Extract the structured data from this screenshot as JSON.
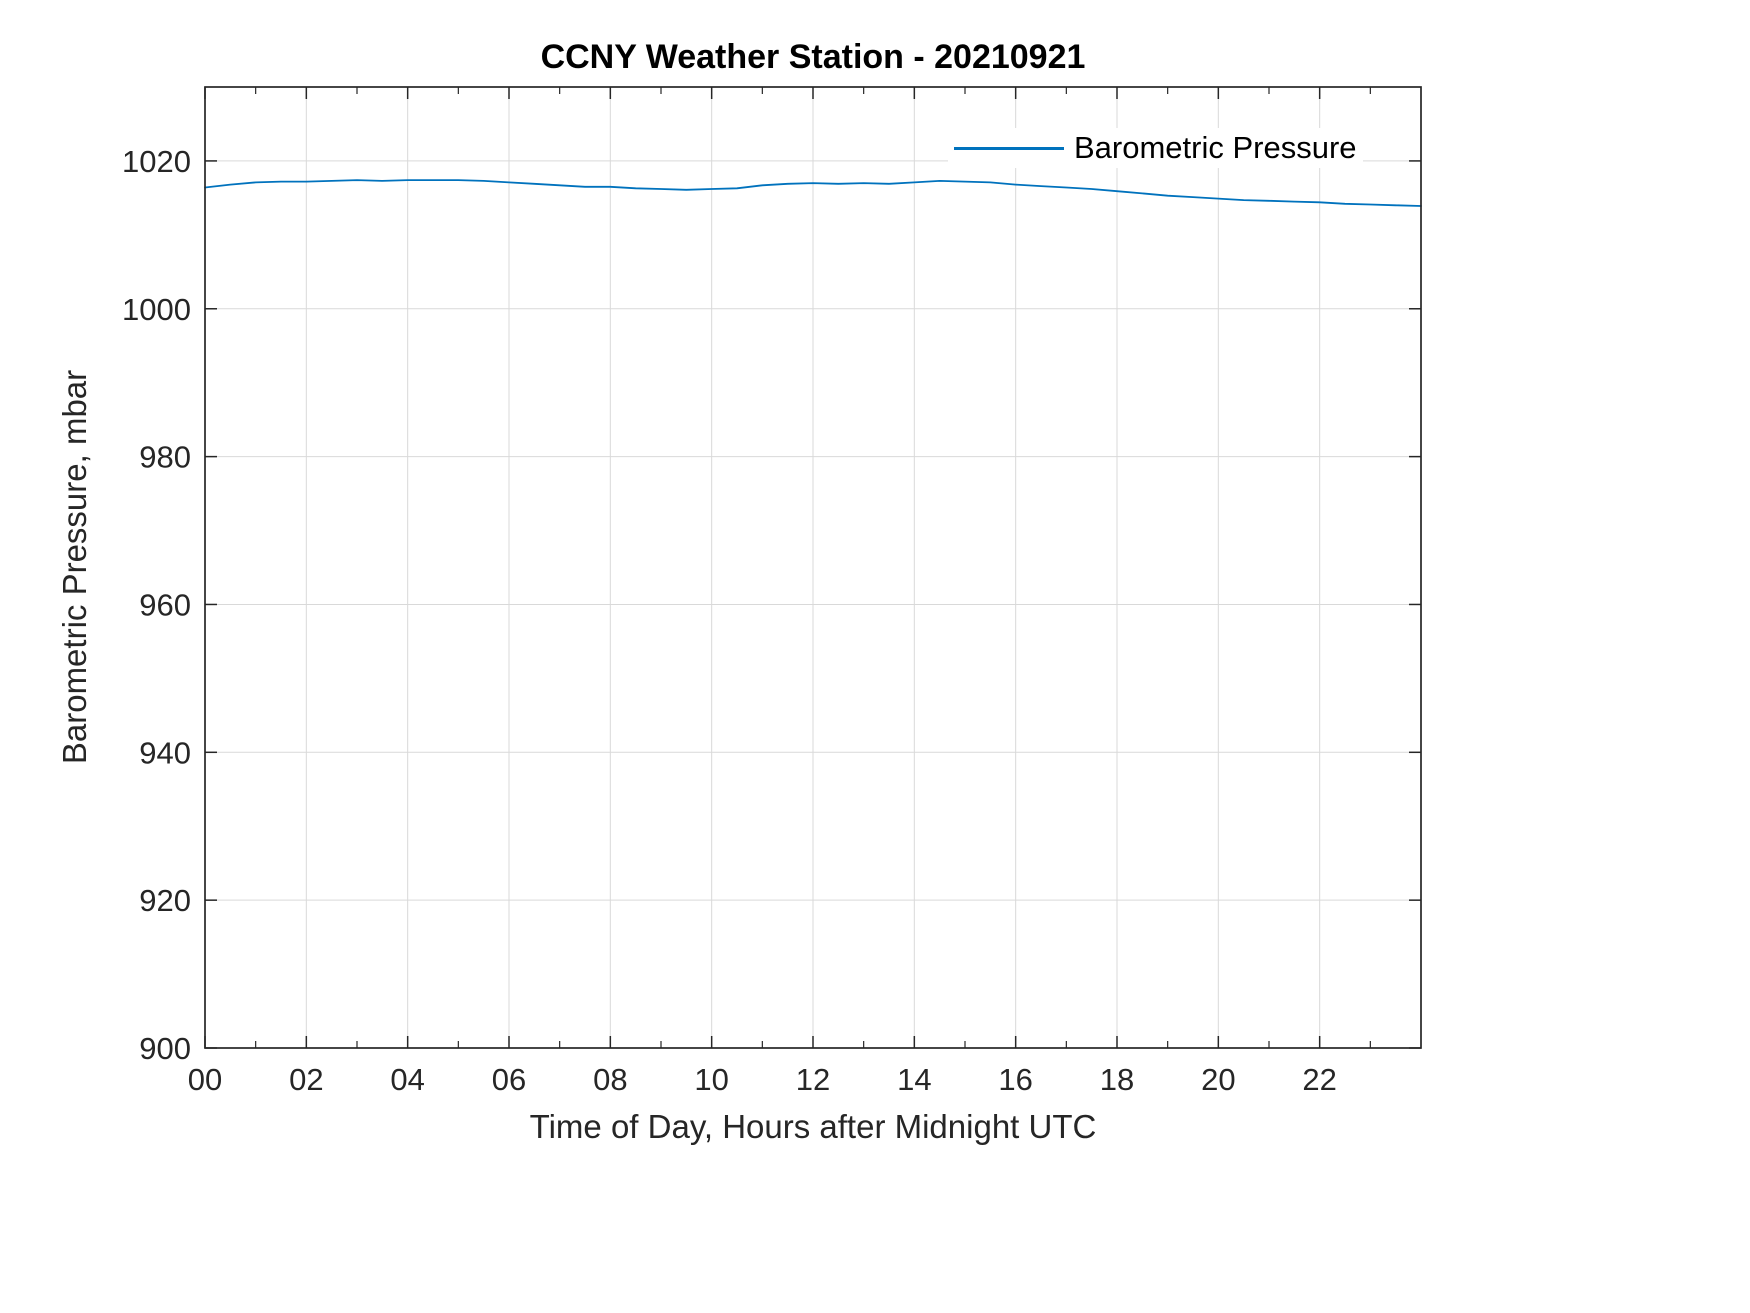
{
  "figure": {
    "title": "CCNY Weather Station - 20210921"
  },
  "legend": {
    "entries": [
      {
        "label": "Barometric Pressure",
        "color": "#0072BD"
      }
    ]
  },
  "colors": {
    "line": "#0072BD",
    "grid": "#d9d9d9",
    "axis": "#262626",
    "tick_text": "#262626",
    "background": "#ffffff"
  },
  "chart_data": {
    "type": "line",
    "title": "CCNY Weather Station - 20210921",
    "xlabel": "Time of Day, Hours after Midnight UTC",
    "ylabel": "Barometric Pressure, mbar",
    "xlim": [
      0,
      24
    ],
    "ylim": [
      900,
      1030
    ],
    "grid": true,
    "legend_position": "northeast",
    "xticks": [
      {
        "value": 0,
        "label": "00"
      },
      {
        "value": 2,
        "label": "02"
      },
      {
        "value": 4,
        "label": "04"
      },
      {
        "value": 6,
        "label": "06"
      },
      {
        "value": 8,
        "label": "08"
      },
      {
        "value": 10,
        "label": "10"
      },
      {
        "value": 12,
        "label": "12"
      },
      {
        "value": 14,
        "label": "14"
      },
      {
        "value": 16,
        "label": "16"
      },
      {
        "value": 18,
        "label": "18"
      },
      {
        "value": 20,
        "label": "20"
      },
      {
        "value": 22,
        "label": "22"
      }
    ],
    "x_minor_ticks": [
      1,
      3,
      5,
      7,
      9,
      11,
      13,
      15,
      17,
      19,
      21,
      23
    ],
    "yticks": [
      {
        "value": 900,
        "label": "900"
      },
      {
        "value": 920,
        "label": "920"
      },
      {
        "value": 940,
        "label": "940"
      },
      {
        "value": 960,
        "label": "960"
      },
      {
        "value": 980,
        "label": "980"
      },
      {
        "value": 1000,
        "label": "1000"
      },
      {
        "value": 1020,
        "label": "1020"
      }
    ],
    "series": [
      {
        "name": "Barometric Pressure",
        "color": "#0072BD",
        "x": [
          0.0,
          0.5,
          1.0,
          1.5,
          2.0,
          2.5,
          3.0,
          3.5,
          4.0,
          4.5,
          5.0,
          5.5,
          6.0,
          6.5,
          7.0,
          7.5,
          8.0,
          8.5,
          9.0,
          9.5,
          10.0,
          10.5,
          11.0,
          11.5,
          12.0,
          12.5,
          13.0,
          13.5,
          14.0,
          14.5,
          15.0,
          15.5,
          16.0,
          16.5,
          17.0,
          17.5,
          18.0,
          18.5,
          19.0,
          19.5,
          20.0,
          20.5,
          21.0,
          21.5,
          22.0,
          22.5,
          23.0,
          23.5,
          24.0
        ],
        "y": [
          1016.4,
          1016.8,
          1017.1,
          1017.2,
          1017.2,
          1017.3,
          1017.4,
          1017.3,
          1017.4,
          1017.4,
          1017.4,
          1017.3,
          1017.1,
          1016.9,
          1016.7,
          1016.5,
          1016.5,
          1016.3,
          1016.2,
          1016.1,
          1016.2,
          1016.3,
          1016.7,
          1016.9,
          1017.0,
          1016.9,
          1017.0,
          1016.9,
          1017.1,
          1017.3,
          1017.2,
          1017.1,
          1016.8,
          1016.6,
          1016.4,
          1016.2,
          1015.9,
          1015.6,
          1015.3,
          1015.1,
          1014.9,
          1014.7,
          1014.6,
          1014.5,
          1014.4,
          1014.2,
          1014.1,
          1014.0,
          1013.9
        ]
      }
    ]
  }
}
